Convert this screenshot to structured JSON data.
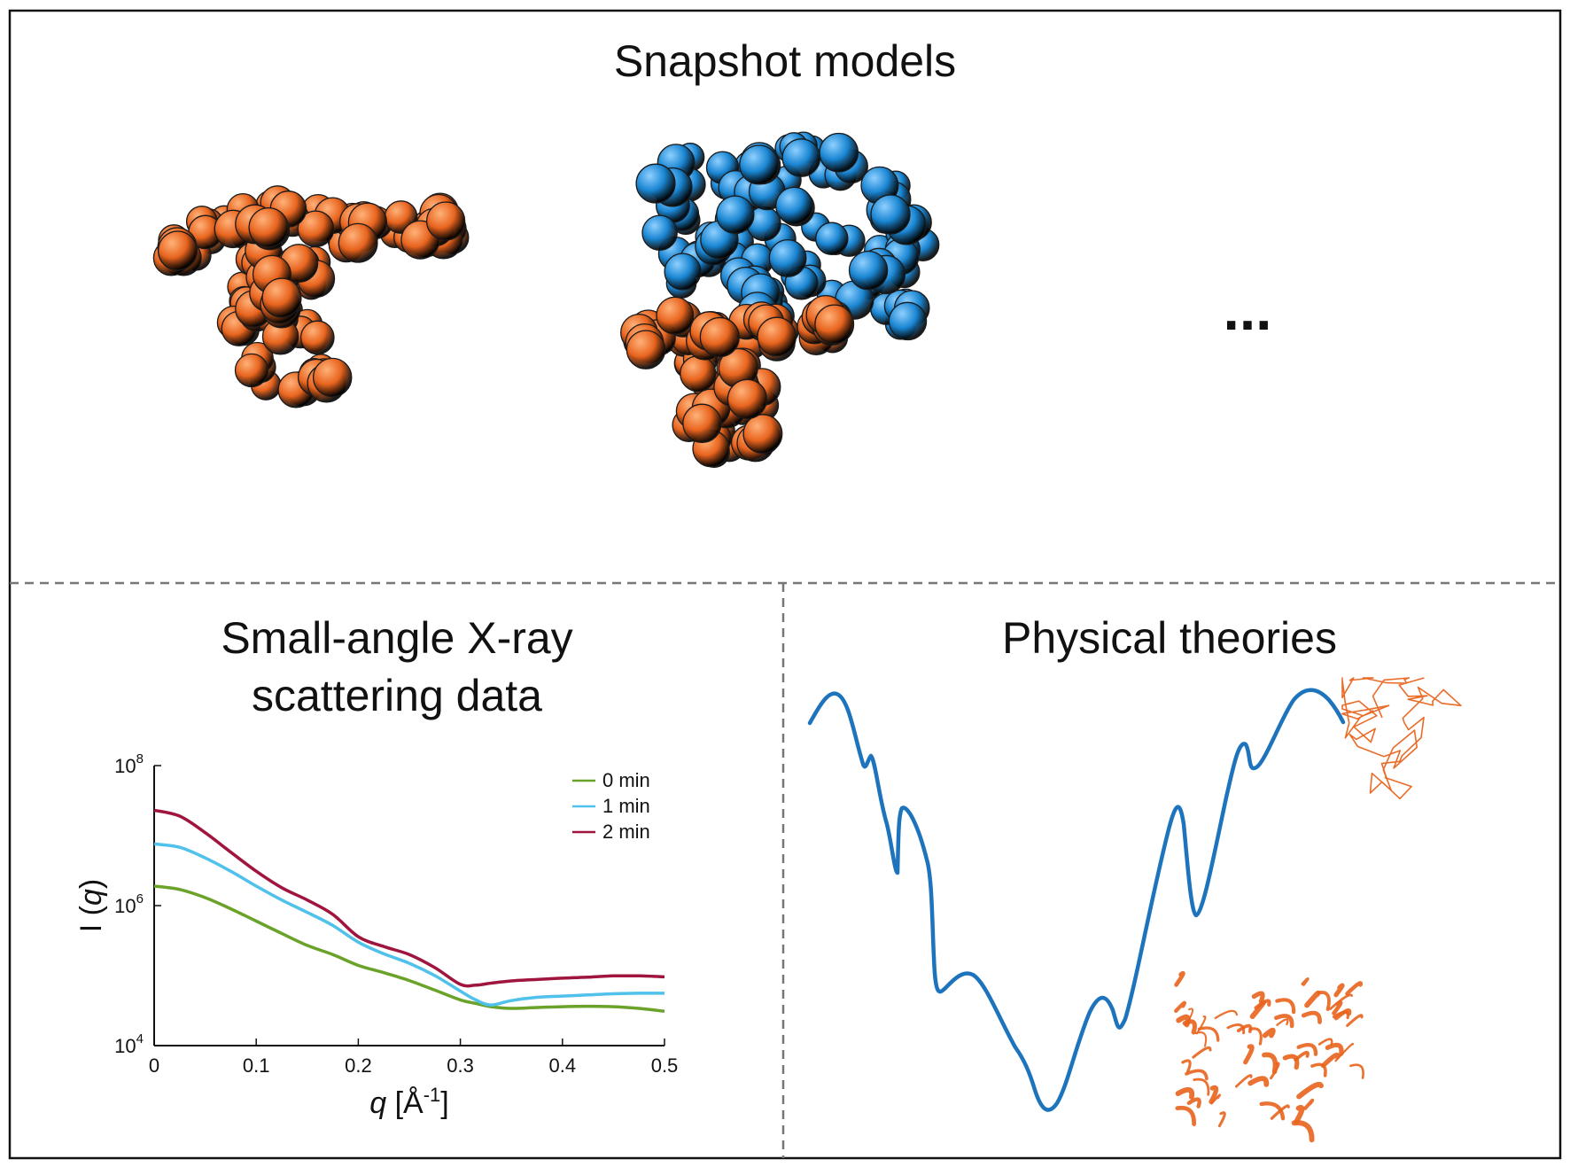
{
  "panels": {
    "top": {
      "title": "Snapshot models",
      "ellipsis": "...",
      "colors": {
        "domain_a": "#e8641e",
        "domain_b": "#1a86d3"
      }
    },
    "bottom_left": {
      "title_line1": "Small-angle X-ray",
      "title_line2": "scattering data"
    },
    "bottom_right": {
      "title": "Physical theories",
      "curve_color": "#1d74bd",
      "structure_color": "#e8641e"
    }
  },
  "chart_data": {
    "type": "line",
    "xlabel": "q [Å-1]",
    "ylabel": "I (q)",
    "xlim": [
      0,
      0.5
    ],
    "ylim": [
      10000,
      100000000
    ],
    "yscale": "log",
    "x_ticks": [
      "0",
      "0.1",
      "0.2",
      "0.3",
      "0.4",
      "0.5"
    ],
    "y_ticks": [
      {
        "base": "10",
        "exp": "4"
      },
      {
        "base": "10",
        "exp": "6"
      },
      {
        "base": "10",
        "exp": "8"
      }
    ],
    "legend_position": "top-right",
    "x": [
      0,
      0.025,
      0.05,
      0.075,
      0.1,
      0.125,
      0.15,
      0.175,
      0.2,
      0.225,
      0.25,
      0.275,
      0.3,
      0.315,
      0.33,
      0.35,
      0.375,
      0.4,
      0.425,
      0.45,
      0.475,
      0.5
    ],
    "series": [
      {
        "name": "0 min",
        "color": "#6aa22a",
        "values": [
          1900000,
          1700000,
          1300000,
          900000,
          600000,
          400000,
          270000,
          200000,
          140000,
          110000,
          85000,
          62000,
          45000,
          40000,
          36000,
          34000,
          35000,
          36000,
          36500,
          36000,
          34000,
          31000
        ]
      },
      {
        "name": "1 min",
        "color": "#4fc1ea",
        "values": [
          7600000,
          6800000,
          4800000,
          3100000,
          1900000,
          1200000,
          800000,
          520000,
          300000,
          205000,
          150000,
          100000,
          60000,
          45000,
          38000,
          44000,
          49000,
          51000,
          53000,
          55000,
          56000,
          56000
        ]
      },
      {
        "name": "2 min",
        "color": "#a0153e",
        "values": [
          23000000,
          19000000,
          11000000,
          5800000,
          3100000,
          1800000,
          1200000,
          750000,
          360000,
          260000,
          200000,
          130000,
          75000,
          73000,
          78000,
          84000,
          88000,
          92000,
          95000,
          99000,
          99000,
          96000
        ]
      }
    ]
  }
}
